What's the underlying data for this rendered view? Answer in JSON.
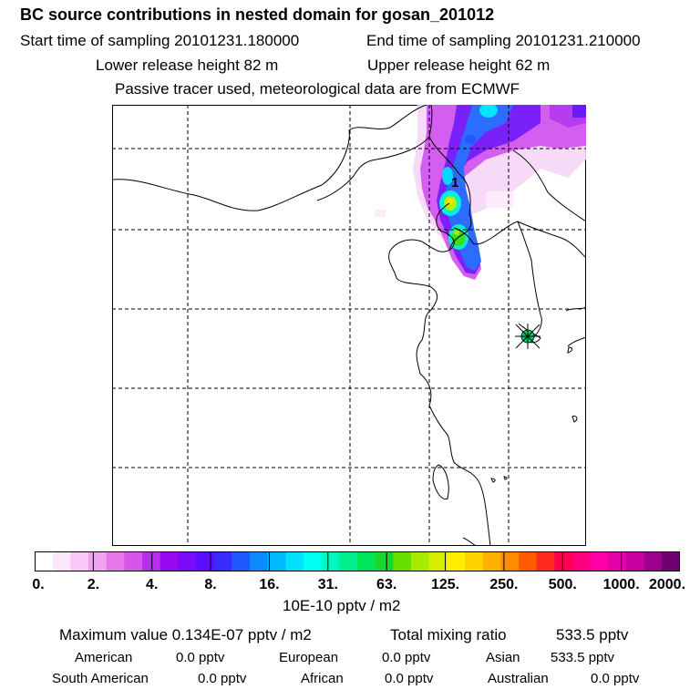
{
  "header": {
    "title": "BC  source contributions in nested domain for gosan_201012",
    "start_label": "Start time of sampling 20101231.180000",
    "end_label": "End time of sampling 20101231.210000",
    "lower_label": "Lower release height   82 m",
    "upper_label": "Upper release height   62 m",
    "note": "Passive tracer used, meteorological data are from ECMWF"
  },
  "map": {
    "label_1": "1",
    "colors": {
      "land_border": "#000000",
      "grid": "#000000",
      "receptor_fill": "#00d060"
    },
    "receptor_icon": "star-marker"
  },
  "colorbar": {
    "ticks": [
      "0.",
      "2.",
      "4.",
      "8.",
      "16.",
      "31.",
      "63.",
      "125.",
      "250.",
      "500.",
      "1000.",
      "2000."
    ],
    "colors": [
      "#ffffff",
      "#fde6fd",
      "#f8c8f8",
      "#f2a2f2",
      "#e877ea",
      "#d755ea",
      "#b82eea",
      "#9a0af0",
      "#7a0af8",
      "#5a10ff",
      "#3a2cff",
      "#1e58ff",
      "#0a8cff",
      "#00b8ff",
      "#00e0ff",
      "#00fff0",
      "#00f6c0",
      "#00ee8c",
      "#00e458",
      "#1ad82a",
      "#66e000",
      "#a8ea00",
      "#d8f000",
      "#ffee00",
      "#ffd200",
      "#ffb000",
      "#ff8c00",
      "#ff5c00",
      "#ff2a20",
      "#ff0050",
      "#ff0080",
      "#ff00a8",
      "#e400a8",
      "#c800a0",
      "#9c008c",
      "#6e0070"
    ],
    "units": "10E-10 pptv / m2"
  },
  "summary": {
    "max_label": "Maximum value  0.134E-07 pptv / m2",
    "total_label": "Total mixing ratio",
    "total_value": "533.5 pptv",
    "american_label": "American",
    "american_value": "0.0 pptv",
    "european_label": "European",
    "european_value": "0.0 pptv",
    "asian_label": "Asian",
    "asian_value": "533.5 pptv",
    "south_american_label": "South American",
    "south_american_value": "0.0 pptv",
    "african_label": "African",
    "african_value": "0.0 pptv",
    "australian_label": "Australian",
    "australian_value": "0.0 pptv"
  }
}
